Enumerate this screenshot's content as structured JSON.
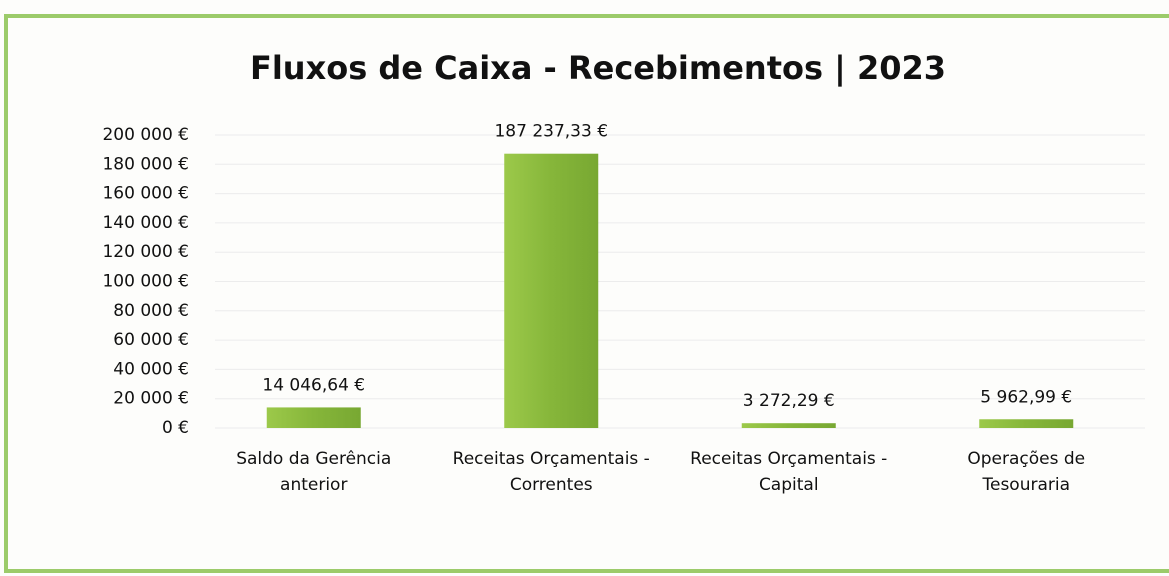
{
  "chart_data": {
    "type": "bar",
    "title": "Fluxos de Caixa - Recebimentos | 2023",
    "categories": [
      "Saldo da Gerência anterior",
      "Receitas Orçamentais - Correntes",
      "Receitas Orçamentais - Capital",
      "Operações de Tesouraria"
    ],
    "values": [
      14046.64,
      187237.33,
      3272.29,
      5962.99
    ],
    "value_labels": [
      "14 046,64 €",
      "187 237,33 €",
      "3 272,29 €",
      "5 962,99 €"
    ],
    "color": "#8cbb3e",
    "ylim": [
      0,
      200000
    ],
    "yticks": [
      {
        "value": 0,
        "label": "0 €"
      },
      {
        "value": 20000,
        "label": "20 000 €"
      },
      {
        "value": 40000,
        "label": "40 000 €"
      },
      {
        "value": 60000,
        "label": "60 000 €"
      },
      {
        "value": 80000,
        "label": "80 000 €"
      },
      {
        "value": 100000,
        "label": "100 000 €"
      },
      {
        "value": 120000,
        "label": "120 000 €"
      },
      {
        "value": 140000,
        "label": "140 000 €"
      },
      {
        "value": 160000,
        "label": "160 000 €"
      },
      {
        "value": 180000,
        "label": "180 000 €"
      },
      {
        "value": 200000,
        "label": "200 000 €"
      }
    ],
    "grid": true
  }
}
